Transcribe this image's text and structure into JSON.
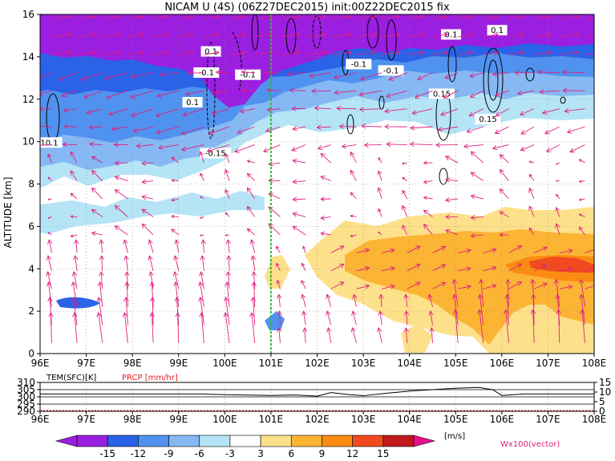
{
  "title": "NICAM U (4S) (06Z27DEC2015) init:00Z22DEC2015 fix",
  "chart_data": {
    "type": "heatmap",
    "ylabel": "ALTITUDE [km]",
    "x_ticks": [
      "96E",
      "97E",
      "98E",
      "99E",
      "100E",
      "101E",
      "102E",
      "103E",
      "104E",
      "105E",
      "106E",
      "107E",
      "108E"
    ],
    "y_ticks": [
      "0",
      "2",
      "4",
      "6",
      "8",
      "10",
      "12",
      "14",
      "16"
    ],
    "xlim": [
      96,
      108
    ],
    "ylim": [
      0,
      16
    ],
    "grid": true,
    "marker_line_lon": 101,
    "contour_labels": [
      {
        "text": "0.1",
        "lon": 99.7,
        "alt": 14.2
      },
      {
        "text": "-0.1",
        "lon": 99.6,
        "alt": 13.2
      },
      {
        "text": "-0.1",
        "lon": 100.5,
        "alt": 13.1
      },
      {
        "text": "0.1",
        "lon": 99.3,
        "alt": 11.8
      },
      {
        "text": "10.1",
        "lon": 96.2,
        "alt": 9.9
      },
      {
        "text": "-0.15",
        "lon": 99.8,
        "alt": 9.4
      },
      {
        "text": "0.1",
        "lon": 104.9,
        "alt": 15.0
      },
      {
        "text": "0.1",
        "lon": 105.9,
        "alt": 15.2
      },
      {
        "text": "-0.1",
        "lon": 102.9,
        "alt": 13.6
      },
      {
        "text": "-0.1",
        "lon": 103.6,
        "alt": 13.3
      },
      {
        "text": "0.15",
        "lon": 104.7,
        "alt": 12.2
      },
      {
        "text": "0.15",
        "lon": 105.7,
        "alt": 11.0
      }
    ],
    "colorbar": {
      "ticks": [
        "-15",
        "-12",
        "-9",
        "-6",
        "-3",
        "3",
        "6",
        "9",
        "12",
        "15"
      ],
      "unit": "[m/s]",
      "colors": [
        "#9a1fe0",
        "#2a62e8",
        "#5092f0",
        "#86b8f4",
        "#b4e4f6",
        "#ffffff",
        "#fde08a",
        "#fcb434",
        "#fb8c12",
        "#f04a1e",
        "#c11a1c"
      ],
      "extend_low_color": "#9a1fe0",
      "extend_high_color": "#e8108c"
    },
    "vector_label": "Wx100(vector)",
    "vector_color": "#e0207e",
    "sub_panel": {
      "left_label": "TEM(SFC)[K]",
      "right_label": "PRCP [mm/hr]",
      "right_label_color": "#e02020",
      "left_ticks": [
        "290",
        "295",
        "300",
        "305",
        "310"
      ],
      "right_ticks": [
        "0",
        "5",
        "10",
        "15"
      ],
      "x_ticks": [
        "96E",
        "97E",
        "98E",
        "99E",
        "100E",
        "101E",
        "102E",
        "103E",
        "104E",
        "105E",
        "106E",
        "107E",
        "108E"
      ],
      "temperature_K": [
        {
          "lon": 96.0,
          "value": 302
        },
        {
          "lon": 97.0,
          "value": 302
        },
        {
          "lon": 98.0,
          "value": 302
        },
        {
          "lon": 99.0,
          "value": 302
        },
        {
          "lon": 99.5,
          "value": 302
        },
        {
          "lon": 100.0,
          "value": 301.5
        },
        {
          "lon": 101.0,
          "value": 301
        },
        {
          "lon": 101.5,
          "value": 301.3
        },
        {
          "lon": 102.0,
          "value": 300.5
        },
        {
          "lon": 102.3,
          "value": 303
        },
        {
          "lon": 102.7,
          "value": 301.5
        },
        {
          "lon": 103.0,
          "value": 300.8
        },
        {
          "lon": 103.5,
          "value": 302.5
        },
        {
          "lon": 104.0,
          "value": 304
        },
        {
          "lon": 104.5,
          "value": 305
        },
        {
          "lon": 105.0,
          "value": 306
        },
        {
          "lon": 105.5,
          "value": 306.5
        },
        {
          "lon": 105.8,
          "value": 305
        },
        {
          "lon": 106.0,
          "value": 301
        },
        {
          "lon": 106.5,
          "value": 302
        },
        {
          "lon": 107.0,
          "value": 302
        },
        {
          "lon": 108.0,
          "value": 302
        }
      ]
    }
  }
}
